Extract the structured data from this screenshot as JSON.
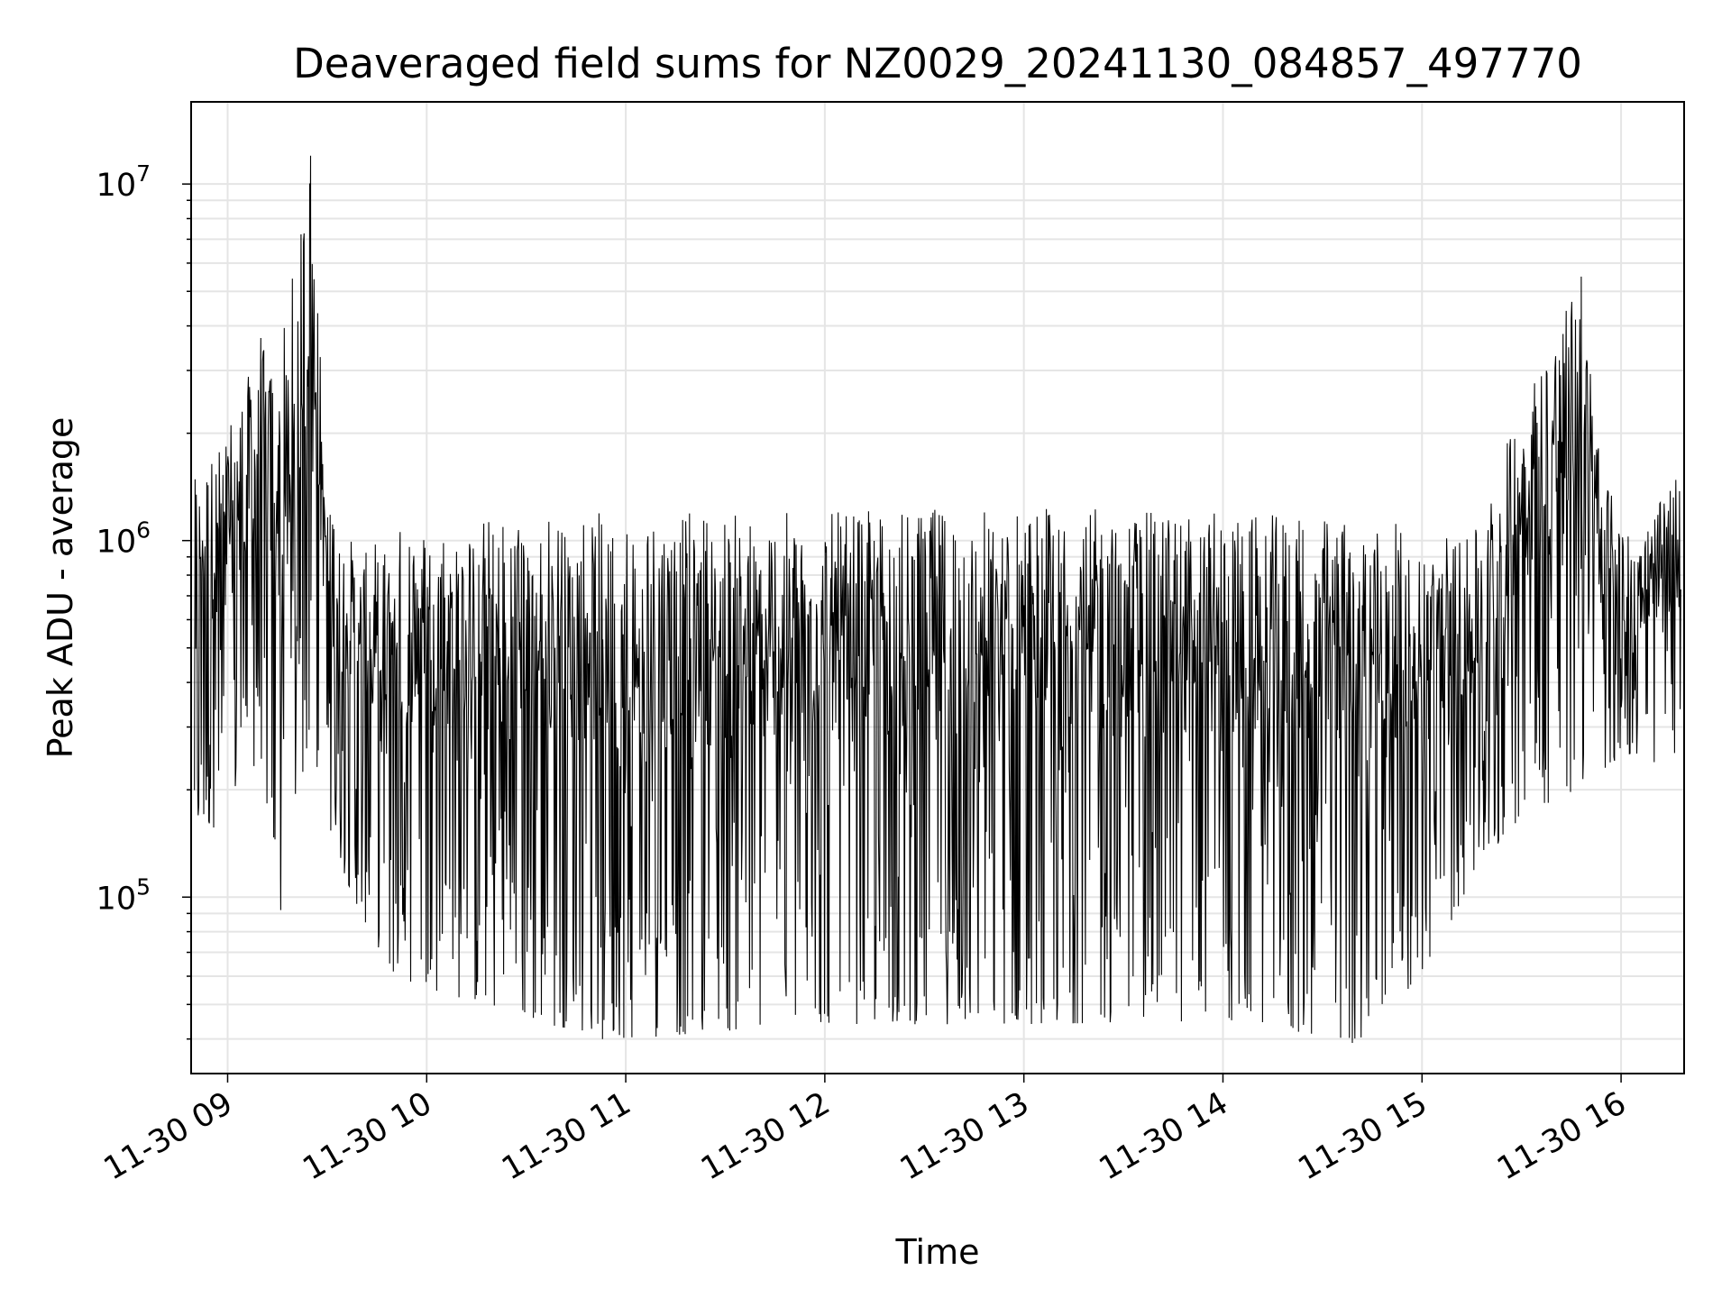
{
  "chart_data": {
    "type": "line",
    "title": "Deaveraged field sums for NZ0029_20241130_084857_497770",
    "xlabel": "Time",
    "ylabel": "Peak ADU - average",
    "yscale": "log",
    "ylim": [
      32000,
      17000000
    ],
    "xlim": [
      "2024-11-30 08:49",
      "2024-11-30 16:19"
    ],
    "grid": true,
    "line_color": "#000000",
    "grid_color": "#e5e5e5",
    "x_ticks": [
      {
        "value": "2024-11-30 09:00",
        "label": "11-30 09"
      },
      {
        "value": "2024-11-30 10:00",
        "label": "11-30 10"
      },
      {
        "value": "2024-11-30 11:00",
        "label": "11-30 11"
      },
      {
        "value": "2024-11-30 12:00",
        "label": "11-30 12"
      },
      {
        "value": "2024-11-30 13:00",
        "label": "11-30 13"
      },
      {
        "value": "2024-11-30 14:00",
        "label": "11-30 14"
      },
      {
        "value": "2024-11-30 15:00",
        "label": "11-30 15"
      },
      {
        "value": "2024-11-30 16:00",
        "label": "11-30 16"
      }
    ],
    "y_ticks": [
      {
        "value": 100000,
        "base": "10",
        "exp": "5"
      },
      {
        "value": 1000000,
        "base": "10",
        "exp": "6"
      },
      {
        "value": 10000000,
        "base": "10",
        "exp": "7"
      }
    ],
    "series": [
      {
        "values_envelope": [
          {
            "x": "2024-11-30 08:50",
            "low": 140000,
            "high": 1500000
          },
          {
            "x": "2024-11-30 09:00",
            "low": 170000,
            "high": 2000000
          },
          {
            "x": "2024-11-30 09:10",
            "low": 250000,
            "high": 3700000
          },
          {
            "x": "2024-11-30 09:15",
            "low": 92000,
            "high": 3000000
          },
          {
            "x": "2024-11-30 09:25",
            "low": 280000,
            "high": 12000000
          },
          {
            "x": "2024-11-30 09:30",
            "low": 150000,
            "high": 1400000
          },
          {
            "x": "2024-11-30 09:40",
            "low": 90000,
            "high": 900000
          },
          {
            "x": "2024-11-30 09:50",
            "low": 60000,
            "high": 1100000
          },
          {
            "x": "2024-11-30 10:30",
            "low": 45000,
            "high": 1200000
          },
          {
            "x": "2024-11-30 11:00",
            "low": 40000,
            "high": 1200000
          },
          {
            "x": "2024-11-30 12:00",
            "low": 44000,
            "high": 1200000
          },
          {
            "x": "2024-11-30 13:00",
            "low": 44000,
            "high": 1250000
          },
          {
            "x": "2024-11-30 14:00",
            "low": 45000,
            "high": 1200000
          },
          {
            "x": "2024-11-30 14:40",
            "low": 39000,
            "high": 1150000
          },
          {
            "x": "2024-11-30 15:00",
            "low": 60000,
            "high": 1100000
          },
          {
            "x": "2024-11-30 15:15",
            "low": 110000,
            "high": 1000000
          },
          {
            "x": "2024-11-30 15:30",
            "low": 170000,
            "high": 2500000
          },
          {
            "x": "2024-11-30 15:48",
            "low": 200000,
            "high": 5500000
          },
          {
            "x": "2024-11-30 15:55",
            "low": 230000,
            "high": 1500000
          },
          {
            "x": "2024-11-30 16:05",
            "low": 250000,
            "high": 1000000
          },
          {
            "x": "2024-11-30 16:18",
            "low": 220000,
            "high": 1600000
          }
        ],
        "spikes": [
          {
            "x": "2024-11-30 09:25",
            "value": 12000000
          },
          {
            "x": "2024-11-30 15:48",
            "value": 5500000
          },
          {
            "x": "2024-11-30 09:10",
            "value": 3700000
          },
          {
            "x": "2024-11-30 09:16",
            "value": 92000
          },
          {
            "x": "2024-11-30 10:53",
            "value": 40000
          },
          {
            "x": "2024-11-30 14:39",
            "value": 39000
          }
        ]
      }
    ]
  }
}
